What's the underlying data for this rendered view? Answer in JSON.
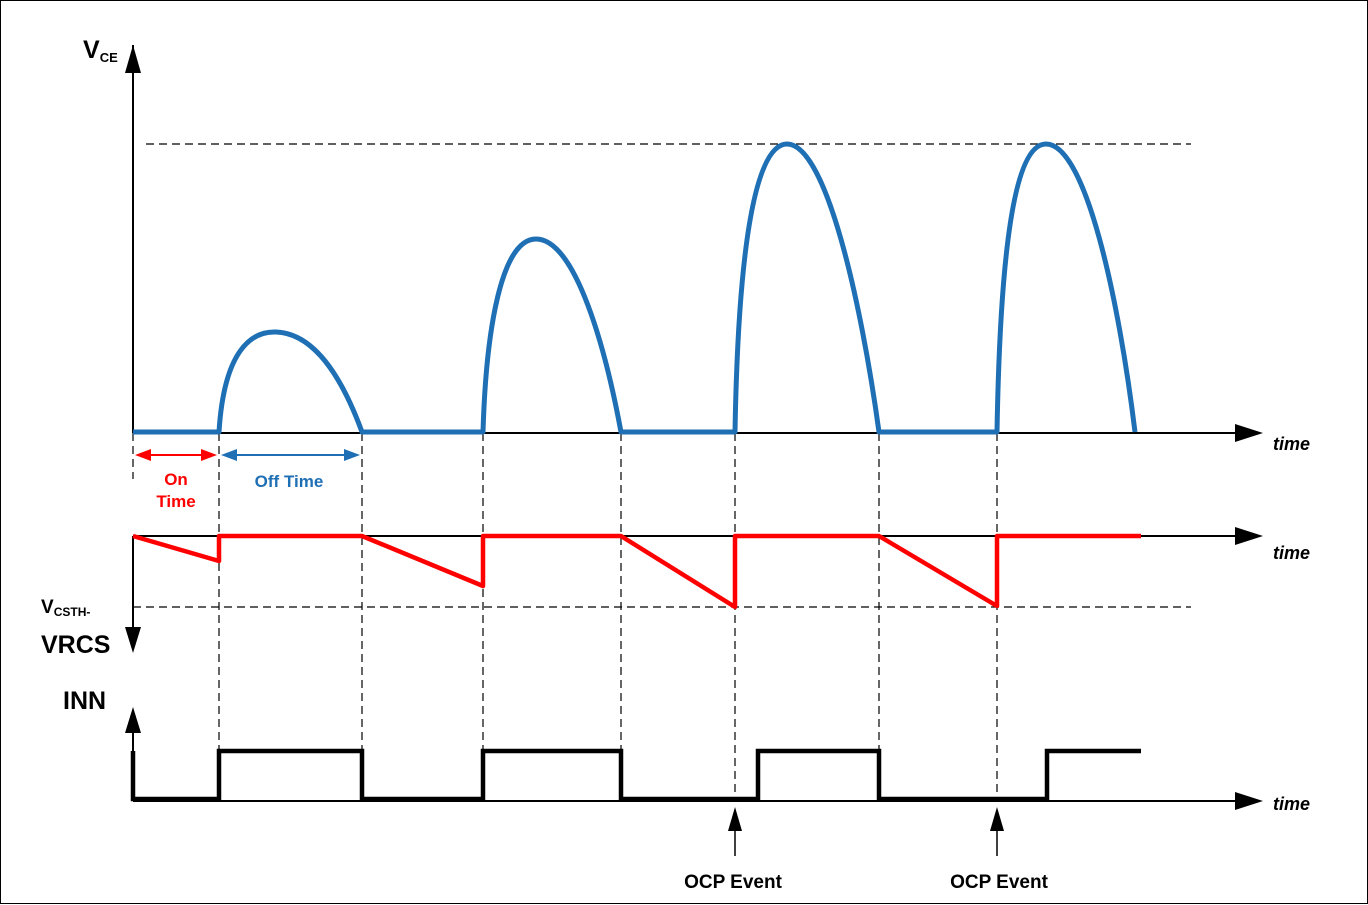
{
  "labels": {
    "vce_main": "V",
    "vce_sub": "CE",
    "time_axis": "time",
    "on_line1": "On",
    "on_line2": "Time",
    "off_time": "Off Time",
    "vcsth_main": "V",
    "vcsth_sub": "CSTH-",
    "vrcs": "VRCS",
    "inn": "INN",
    "ocp_event": "OCP Event"
  },
  "colors": {
    "vce": "#1f6fb5",
    "vrcs": "#ff0000",
    "inn": "#000000",
    "on_time": "#ff0000",
    "off_time": "#1f6fb5"
  }
}
